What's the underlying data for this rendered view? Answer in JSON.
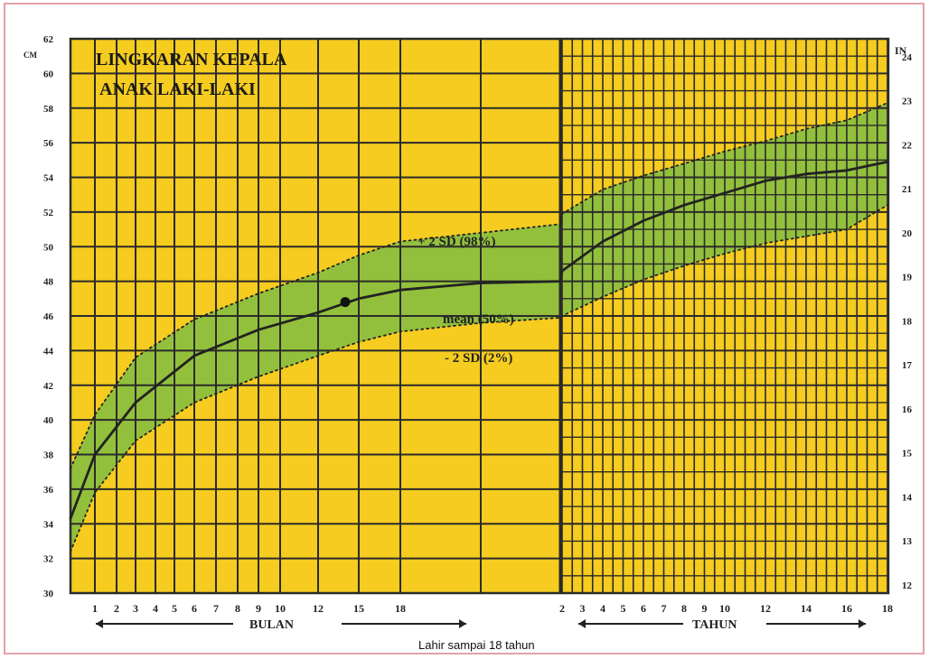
{
  "chart_data": {
    "type": "line",
    "title_lines": [
      "LINGKARAN KEPALA",
      "ANAK LAKI-LAKI"
    ],
    "caption": "Lahir sampai 18 tahun",
    "y_left_unit": "CM",
    "y_right_unit": "IN",
    "ylim": [
      30,
      62
    ],
    "y_left_ticks": [
      "30",
      "32",
      "34",
      "36",
      "38",
      "40",
      "42",
      "44",
      "46",
      "48",
      "50",
      "52",
      "54",
      "56",
      "58",
      "60",
      "62"
    ],
    "y_right_ticks": [
      {
        "label": "12",
        "cm": 30.48
      },
      {
        "label": "13",
        "cm": 33.02
      },
      {
        "label": "14",
        "cm": 35.56
      },
      {
        "label": "15",
        "cm": 38.1
      },
      {
        "label": "16",
        "cm": 40.64
      },
      {
        "label": "17",
        "cm": 43.18
      },
      {
        "label": "18",
        "cm": 45.72
      },
      {
        "label": "19",
        "cm": 48.26
      },
      {
        "label": "20",
        "cm": 50.8
      },
      {
        "label": "21",
        "cm": 53.34
      },
      {
        "label": "22",
        "cm": 55.88
      },
      {
        "label": "23",
        "cm": 58.42
      },
      {
        "label": "24",
        "cm": 60.96
      }
    ],
    "x_month_ticks": [
      "1",
      "2",
      "3",
      "4",
      "5",
      "6",
      "7",
      "8",
      "9",
      "10",
      "12",
      "15",
      "18"
    ],
    "x_month_label": "BULAN",
    "x_year_ticks": [
      "2",
      "3",
      "4",
      "5",
      "6",
      "7",
      "8",
      "9",
      "10",
      "12",
      "14",
      "16",
      "18"
    ],
    "x_year_label": "TAHUN",
    "grid": true,
    "series": [
      {
        "name": "+ 2 SD (98%)",
        "style": "dotted",
        "points": [
          {
            "period": "months",
            "t": 0,
            "y": 37.2
          },
          {
            "period": "months",
            "t": 1,
            "y": 40.3
          },
          {
            "period": "months",
            "t": 3,
            "y": 43.6
          },
          {
            "period": "months",
            "t": 6,
            "y": 45.8
          },
          {
            "period": "months",
            "t": 9,
            "y": 47.3
          },
          {
            "period": "months",
            "t": 12,
            "y": 48.5
          },
          {
            "period": "months",
            "t": 15,
            "y": 49.5
          },
          {
            "period": "months",
            "t": 18,
            "y": 50.3
          },
          {
            "period": "months",
            "t": 21,
            "y": 50.8
          },
          {
            "period": "months",
            "t": 24,
            "y": 51.3
          },
          {
            "period": "years",
            "t": 2,
            "y": 51.9
          },
          {
            "period": "years",
            "t": 4,
            "y": 53.3
          },
          {
            "period": "years",
            "t": 6,
            "y": 54.1
          },
          {
            "period": "years",
            "t": 8,
            "y": 54.8
          },
          {
            "period": "years",
            "t": 10,
            "y": 55.5
          },
          {
            "period": "years",
            "t": 12,
            "y": 56.1
          },
          {
            "period": "years",
            "t": 14,
            "y": 56.8
          },
          {
            "period": "years",
            "t": 16,
            "y": 57.3
          },
          {
            "period": "years",
            "t": 18,
            "y": 58.3
          }
        ]
      },
      {
        "name": "mean (50%)",
        "style": "solid",
        "points": [
          {
            "period": "months",
            "t": 0,
            "y": 34.3
          },
          {
            "period": "months",
            "t": 1,
            "y": 38.0
          },
          {
            "period": "months",
            "t": 3,
            "y": 41.0
          },
          {
            "period": "months",
            "t": 6,
            "y": 43.7
          },
          {
            "period": "months",
            "t": 9,
            "y": 45.2
          },
          {
            "period": "months",
            "t": 12,
            "y": 46.2
          },
          {
            "period": "months",
            "t": 15,
            "y": 47.0
          },
          {
            "period": "months",
            "t": 18,
            "y": 47.5
          },
          {
            "period": "months",
            "t": 21,
            "y": 47.9
          },
          {
            "period": "months",
            "t": 24,
            "y": 48.0
          },
          {
            "period": "years",
            "t": 2,
            "y": 48.6
          },
          {
            "period": "years",
            "t": 4,
            "y": 50.3
          },
          {
            "period": "years",
            "t": 6,
            "y": 51.5
          },
          {
            "period": "years",
            "t": 8,
            "y": 52.4
          },
          {
            "period": "years",
            "t": 10,
            "y": 53.1
          },
          {
            "period": "years",
            "t": 12,
            "y": 53.8
          },
          {
            "period": "years",
            "t": 14,
            "y": 54.2
          },
          {
            "period": "years",
            "t": 16,
            "y": 54.4
          },
          {
            "period": "years",
            "t": 18,
            "y": 54.9
          }
        ]
      },
      {
        "name": "- 2 SD (2%)",
        "style": "dotted",
        "points": [
          {
            "period": "months",
            "t": 0,
            "y": 32.4
          },
          {
            "period": "months",
            "t": 1,
            "y": 35.8
          },
          {
            "period": "months",
            "t": 3,
            "y": 38.8
          },
          {
            "period": "months",
            "t": 6,
            "y": 41.0
          },
          {
            "period": "months",
            "t": 9,
            "y": 42.5
          },
          {
            "period": "months",
            "t": 12,
            "y": 43.7
          },
          {
            "period": "months",
            "t": 15,
            "y": 44.5
          },
          {
            "period": "months",
            "t": 18,
            "y": 45.1
          },
          {
            "period": "months",
            "t": 21,
            "y": 45.6
          },
          {
            "period": "months",
            "t": 24,
            "y": 45.9
          },
          {
            "period": "years",
            "t": 2,
            "y": 46.0
          },
          {
            "period": "years",
            "t": 4,
            "y": 47.1
          },
          {
            "period": "years",
            "t": 6,
            "y": 48.1
          },
          {
            "period": "years",
            "t": 8,
            "y": 48.9
          },
          {
            "period": "years",
            "t": 10,
            "y": 49.6
          },
          {
            "period": "years",
            "t": 12,
            "y": 50.2
          },
          {
            "period": "years",
            "t": 14,
            "y": 50.6
          },
          {
            "period": "years",
            "t": 16,
            "y": 51.0
          },
          {
            "period": "years",
            "t": 18,
            "y": 52.4
          }
        ]
      }
    ],
    "marker": {
      "period": "months",
      "t": 14,
      "y": 46.8
    },
    "colors": {
      "background": "#f5cc1f",
      "band": "#8cbf3f",
      "grid": "#2a2a2a",
      "line": "#222222",
      "frame_border": "#e2a3a8"
    }
  }
}
